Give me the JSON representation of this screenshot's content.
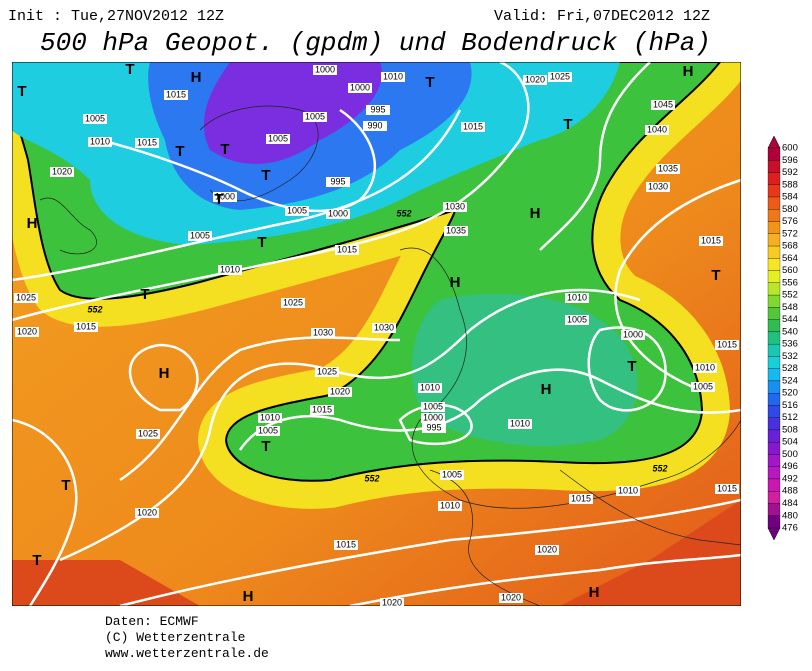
{
  "header": {
    "init": "Init : Tue,27NOV2012 12Z",
    "valid": "Valid: Fri,07DEC2012 12Z",
    "title": "500 hPa Geopot. (gpdm) und Bodendruck (hPa)"
  },
  "footer": [
    "Daten: ECMWF",
    "(C) Wetterzentrale",
    "www.wetterzentrale.de"
  ],
  "legend_levels": [
    600,
    596,
    592,
    588,
    584,
    580,
    576,
    572,
    568,
    564,
    560,
    556,
    552,
    548,
    544,
    540,
    536,
    532,
    528,
    524,
    520,
    516,
    512,
    508,
    504,
    500,
    496,
    492,
    488,
    484,
    480,
    476
  ],
  "map": {
    "markers": [
      "T",
      "H",
      "T",
      "T",
      "T",
      "T",
      "T",
      "T",
      "H",
      "T",
      "T",
      "T",
      "H",
      "H",
      "H",
      "T",
      "H",
      "T",
      "T",
      "H",
      "T",
      "T",
      "H",
      "H"
    ],
    "isobars": [
      "1000",
      "1010",
      "1020",
      "1025",
      "1000",
      "1015",
      "1005",
      "995",
      "990",
      "1005",
      "1010",
      "1015",
      "1005",
      "1015",
      "1045",
      "1040",
      "1020",
      "1035",
      "1030",
      "995",
      "1000",
      "1005",
      "1000",
      "1005",
      "1030",
      "1035",
      "1015",
      "1010",
      "1025",
      "1025",
      "1015",
      "1020",
      "1030",
      "1030",
      "1010",
      "1005",
      "1000",
      "1015",
      "1015",
      "1010",
      "1005",
      "1025",
      "1020",
      "1015",
      "1010",
      "1010",
      "1005",
      "1005",
      "1000",
      "995",
      "1010",
      "1025",
      "1005",
      "1010",
      "1015",
      "1010",
      "1015",
      "1020",
      "1015",
      "1020",
      "1020",
      "1020"
    ],
    "height_labels": [
      "552",
      "552",
      "552",
      "552"
    ]
  }
}
